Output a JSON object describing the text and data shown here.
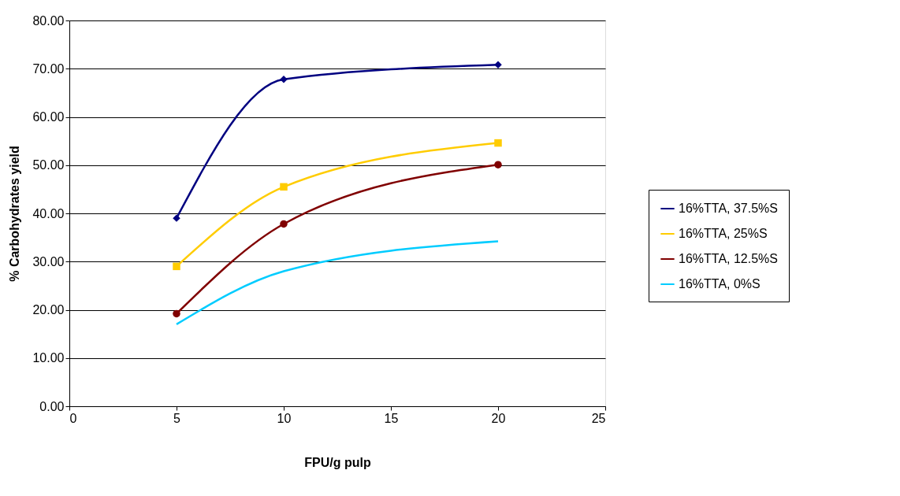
{
  "chart_data": {
    "type": "line",
    "xlabel": "FPU/g pulp",
    "ylabel": "% Carbohydrates yield",
    "x": [
      5,
      10,
      20
    ],
    "series": [
      {
        "name": "16%TTA, 37.5%S",
        "color": "#000080",
        "marker": "diamond",
        "values": [
          39.0,
          67.8,
          70.8
        ]
      },
      {
        "name": "16%TTA, 25%S",
        "color": "#ffcc00",
        "marker": "square",
        "values": [
          29.0,
          45.5,
          54.6
        ]
      },
      {
        "name": "16%TTA, 12.5%S",
        "color": "#800000",
        "marker": "circle",
        "values": [
          19.2,
          37.8,
          50.1
        ]
      },
      {
        "name": "16%TTA, 0%S",
        "color": "#00ccff",
        "marker": "none",
        "values": [
          17.0,
          28.0,
          34.2
        ]
      }
    ],
    "xlim": [
      0,
      25
    ],
    "xticks": [
      0,
      5,
      10,
      15,
      20,
      25
    ],
    "ylim": [
      0,
      80
    ],
    "yticks": [
      {
        "value": 0,
        "label": "0.00"
      },
      {
        "value": 10,
        "label": "10.00"
      },
      {
        "value": 20,
        "label": "20.00"
      },
      {
        "value": 30,
        "label": "30.00"
      },
      {
        "value": 40,
        "label": "40.00"
      },
      {
        "value": 50,
        "label": "50.00"
      },
      {
        "value": 60,
        "label": "60.00"
      },
      {
        "value": 70,
        "label": "70.00"
      },
      {
        "value": 80,
        "label": "80.00"
      }
    ],
    "grid": "y",
    "legend": "right",
    "line_style": "solid"
  }
}
